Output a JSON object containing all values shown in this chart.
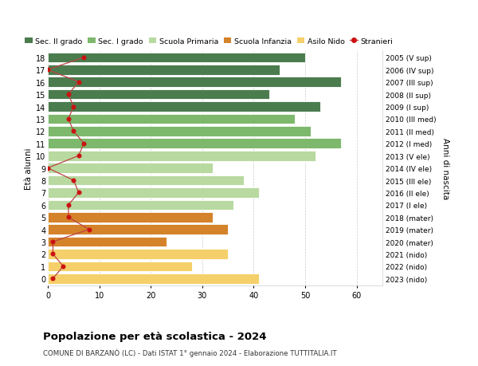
{
  "ages": [
    18,
    17,
    16,
    15,
    14,
    13,
    12,
    11,
    10,
    9,
    8,
    7,
    6,
    5,
    4,
    3,
    2,
    1,
    0
  ],
  "right_labels": [
    "2005 (V sup)",
    "2006 (IV sup)",
    "2007 (III sup)",
    "2008 (II sup)",
    "2009 (I sup)",
    "2010 (III med)",
    "2011 (II med)",
    "2012 (I med)",
    "2013 (V ele)",
    "2014 (IV ele)",
    "2015 (III ele)",
    "2016 (II ele)",
    "2017 (I ele)",
    "2018 (mater)",
    "2019 (mater)",
    "2020 (mater)",
    "2021 (nido)",
    "2022 (nido)",
    "2023 (nido)"
  ],
  "bar_values": [
    50,
    45,
    57,
    43,
    53,
    48,
    51,
    57,
    52,
    32,
    38,
    41,
    36,
    32,
    35,
    23,
    35,
    28,
    41
  ],
  "bar_colors": [
    "#4a7c4e",
    "#4a7c4e",
    "#4a7c4e",
    "#4a7c4e",
    "#4a7c4e",
    "#7db86d",
    "#7db86d",
    "#7db86d",
    "#b8d9a0",
    "#b8d9a0",
    "#b8d9a0",
    "#b8d9a0",
    "#b8d9a0",
    "#d4832a",
    "#d4832a",
    "#d4832a",
    "#f5d06a",
    "#f5d06a",
    "#f5d06a"
  ],
  "stranieri_values": [
    7,
    0,
    6,
    4,
    5,
    4,
    5,
    7,
    6,
    0,
    5,
    6,
    4,
    4,
    8,
    1,
    1,
    3,
    1
  ],
  "legend_labels": [
    "Sec. II grado",
    "Sec. I grado",
    "Scuola Primaria",
    "Scuola Infanzia",
    "Asilo Nido",
    "Stranieri"
  ],
  "legend_colors": [
    "#4a7c4e",
    "#7db86d",
    "#b8d9a0",
    "#d4832a",
    "#f5d06a",
    "#cc1111"
  ],
  "title": "Popolazione per età scolastica - 2024",
  "subtitle": "COMUNE DI BARZANÒ (LC) - Dati ISTAT 1° gennaio 2024 - Elaborazione TUTTITALIA.IT",
  "ylabel_left": "Età alunni",
  "ylabel_right": "Anni di nascita",
  "xlim": [
    0,
    65
  ],
  "xticks": [
    0,
    10,
    20,
    30,
    40,
    50,
    60
  ],
  "background_color": "#ffffff",
  "grid_color": "#cccccc",
  "bar_height": 0.82,
  "stranieri_color": "#cc1111",
  "stranieri_line_color": "#bb4444"
}
